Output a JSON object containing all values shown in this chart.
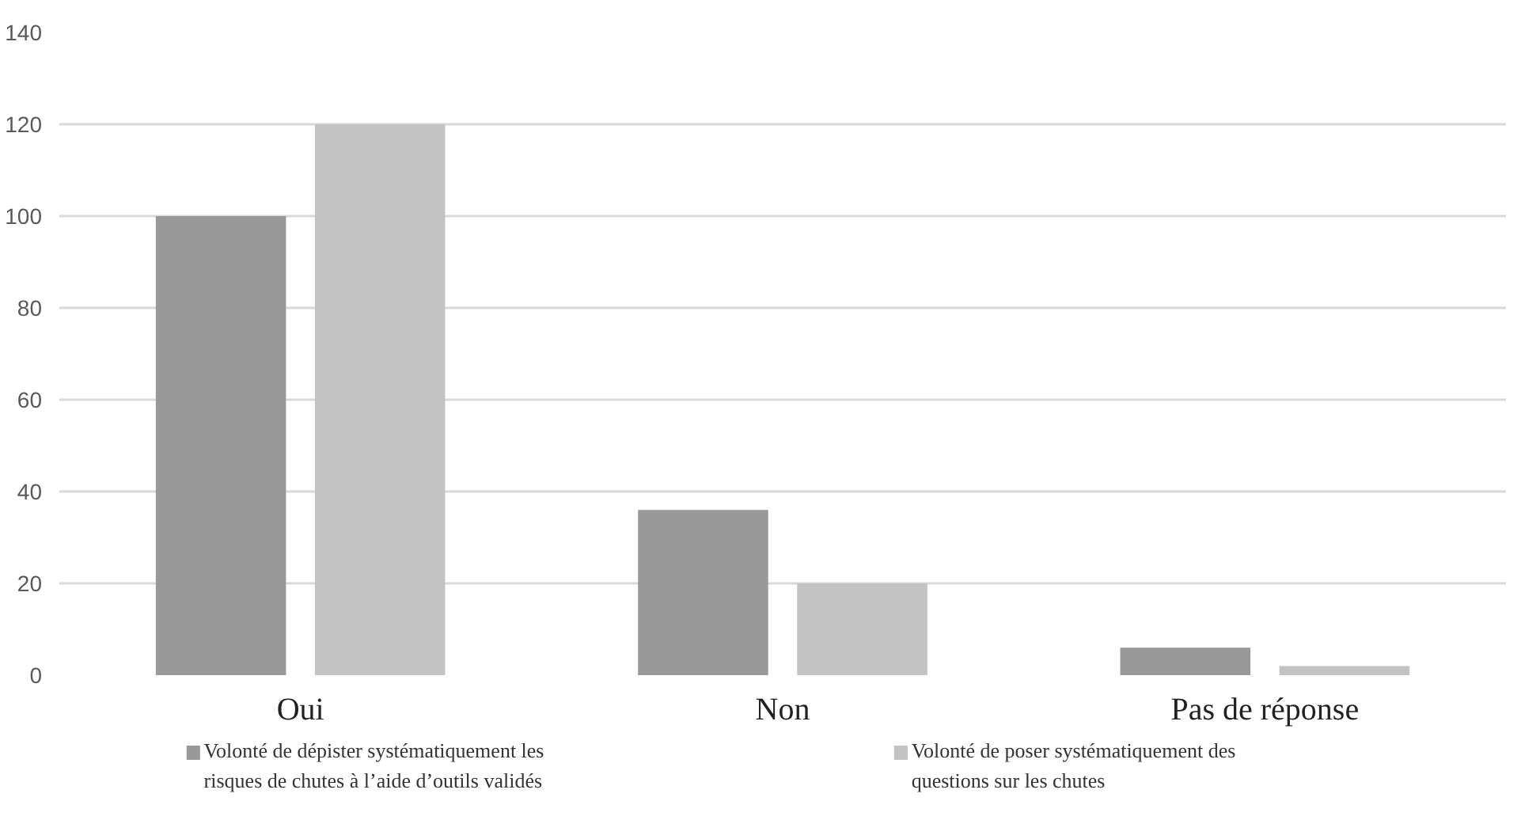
{
  "chart_data": {
    "type": "bar",
    "categories": [
      "Oui",
      "Non",
      "Pas de réponse"
    ],
    "series": [
      {
        "name": "Volonté de dépister systématiquement les risques de chutes à l’aide d’outils validés",
        "color": "#999999",
        "values": [
          100,
          36,
          6
        ]
      },
      {
        "name": "Volonté de poser systématiquement des questions sur les chutes",
        "color": "#c3c3c3",
        "values": [
          120,
          20,
          2
        ]
      }
    ],
    "ylim": [
      0,
      140
    ],
    "yticks": [
      0,
      20,
      40,
      60,
      80,
      100,
      120,
      140
    ],
    "grid": "y",
    "legend": "bottom"
  }
}
